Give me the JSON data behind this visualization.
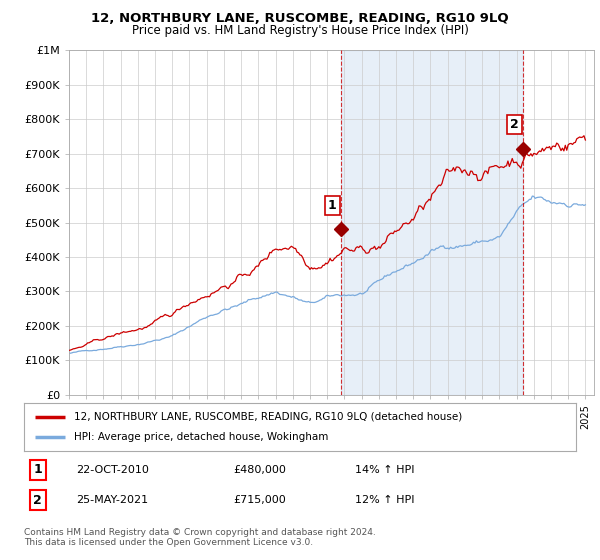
{
  "title": "12, NORTHBURY LANE, RUSCOMBE, READING, RG10 9LQ",
  "subtitle": "Price paid vs. HM Land Registry's House Price Index (HPI)",
  "ylabel_values": [
    "£0",
    "£100K",
    "£200K",
    "£300K",
    "£400K",
    "£500K",
    "£600K",
    "£700K",
    "£800K",
    "£900K",
    "£1M"
  ],
  "ylim": [
    0,
    1000000
  ],
  "yticks": [
    0,
    100000,
    200000,
    300000,
    400000,
    500000,
    600000,
    700000,
    800000,
    900000,
    1000000
  ],
  "xlim_start": 1995.0,
  "xlim_end": 2025.5,
  "sale1_x": 2010.8,
  "sale1_y": 480000,
  "sale1_label": "1",
  "sale2_x": 2021.38,
  "sale2_y": 715000,
  "sale2_label": "2",
  "hpi_color": "#7aaadd",
  "hpi_fill_color": "#ddeeff",
  "price_color": "#cc0000",
  "dot_color": "#990000",
  "background_color": "#ffffff",
  "grid_color": "#cccccc",
  "legend_entry1": "12, NORTHBURY LANE, RUSCOMBE, READING, RG10 9LQ (detached house)",
  "legend_entry2": "HPI: Average price, detached house, Wokingham",
  "table_row1": [
    "1",
    "22-OCT-2010",
    "£480,000",
    "14% ↑ HPI"
  ],
  "table_row2": [
    "2",
    "25-MAY-2021",
    "£715,000",
    "12% ↑ HPI"
  ],
  "footnote": "Contains HM Land Registry data © Crown copyright and database right 2024.\nThis data is licensed under the Open Government Licence v3.0."
}
